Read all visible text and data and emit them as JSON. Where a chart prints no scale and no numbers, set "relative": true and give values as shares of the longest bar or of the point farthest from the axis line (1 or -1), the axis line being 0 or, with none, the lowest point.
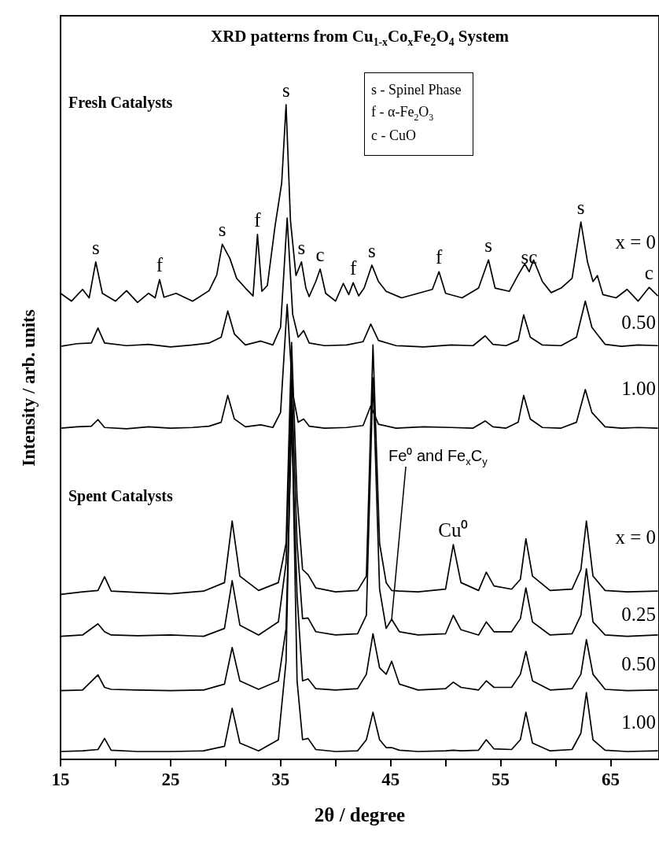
{
  "chart_data": {
    "type": "line",
    "title": "XRD patterns from Cu$_{1-x}$Co$_{x}$Fe$_{2}$O$_{4}$ System",
    "xlabel": "2θ / degree",
    "ylabel": "Intensity / arb. units",
    "relative": true,
    "xlim": [
      15,
      69.4
    ],
    "xticks": [
      15,
      {
        "value": 20,
        "label": null
      },
      25,
      {
        "value": 30,
        "label": null
      },
      35,
      {
        "value": 40,
        "label": null
      },
      45,
      {
        "value": 50,
        "label": null
      },
      55,
      {
        "value": 60,
        "label": null
      },
      65
    ],
    "series": [
      {
        "name": "x = 0",
        "color": "#000000",
        "x": [
          15,
          16,
          17,
          17.6,
          18.2,
          18.8,
          20,
          21,
          22,
          23,
          23.6,
          24,
          24.4,
          25.5,
          27,
          28.5,
          29.2,
          29.7,
          30.4,
          31,
          31.8,
          32.5,
          32.9,
          33.3,
          33.8,
          34.5,
          35.1,
          35.5,
          35.9,
          36.4,
          36.9,
          37.3,
          37.6,
          38.2,
          38.6,
          39.1,
          40,
          40.7,
          41.2,
          41.6,
          42.1,
          42.6,
          43.3,
          43.9,
          44.6,
          46,
          47.5,
          48.8,
          49.4,
          50,
          51.5,
          53,
          53.9,
          54.5,
          55.8,
          56.6,
          57.2,
          57.6,
          58,
          58.8,
          59.6,
          60.5,
          61.5,
          62.3,
          62.9,
          63.4,
          63.8,
          64.3,
          65.5,
          66.5,
          67.5,
          68.5,
          69.3
        ],
        "values": [
          0.712,
          0.7,
          0.718,
          0.705,
          0.76,
          0.712,
          0.7,
          0.716,
          0.698,
          0.712,
          0.705,
          0.733,
          0.706,
          0.712,
          0.7,
          0.716,
          0.74,
          0.787,
          0.765,
          0.735,
          0.72,
          0.708,
          0.802,
          0.715,
          0.724,
          0.815,
          0.88,
          1.0,
          0.823,
          0.739,
          0.76,
          0.72,
          0.707,
          0.73,
          0.749,
          0.712,
          0.7,
          0.727,
          0.71,
          0.728,
          0.708,
          0.72,
          0.755,
          0.73,
          0.715,
          0.705,
          0.712,
          0.718,
          0.745,
          0.712,
          0.705,
          0.72,
          0.763,
          0.72,
          0.715,
          0.74,
          0.757,
          0.745,
          0.763,
          0.73,
          0.713,
          0.72,
          0.735,
          0.821,
          0.76,
          0.73,
          0.739,
          0.71,
          0.705,
          0.718,
          0.7,
          0.721,
          0.708
        ]
      },
      {
        "name": "0.50",
        "color": "#000000",
        "x": [
          15,
          16.5,
          17.8,
          18.4,
          19,
          21,
          23,
          25,
          27,
          28.5,
          29.6,
          30.2,
          30.8,
          31.8,
          33.2,
          34.3,
          35.0,
          35.6,
          36.1,
          36.6,
          37.1,
          37.6,
          39,
          41,
          42.5,
          43.2,
          43.9,
          45.5,
          48,
          50.5,
          52.5,
          53.6,
          54.3,
          55.5,
          56.6,
          57.1,
          57.7,
          58.8,
          60.5,
          61.9,
          62.7,
          63.3,
          64.5,
          66,
          67.5,
          69.3
        ],
        "values": [
          0.631,
          0.635,
          0.636,
          0.659,
          0.636,
          0.632,
          0.634,
          0.63,
          0.633,
          0.636,
          0.645,
          0.685,
          0.65,
          0.633,
          0.639,
          0.633,
          0.66,
          0.827,
          0.68,
          0.645,
          0.655,
          0.636,
          0.632,
          0.633,
          0.638,
          0.665,
          0.64,
          0.632,
          0.63,
          0.633,
          0.632,
          0.647,
          0.634,
          0.632,
          0.64,
          0.679,
          0.645,
          0.633,
          0.632,
          0.645,
          0.7,
          0.66,
          0.634,
          0.631,
          0.633,
          0.632
        ]
      },
      {
        "name": "1.00",
        "color": "#000000",
        "x": [
          15,
          16.5,
          17.8,
          18.4,
          19,
          21,
          23,
          25,
          27,
          28.5,
          29.6,
          30.2,
          30.8,
          31.8,
          33.2,
          34.3,
          35.0,
          35.6,
          36.1,
          36.6,
          37.1,
          37.6,
          39,
          41,
          42.5,
          43.2,
          43.9,
          45.5,
          48,
          50.5,
          52.5,
          53.6,
          54.3,
          55.5,
          56.6,
          57.1,
          57.7,
          58.8,
          60.5,
          61.9,
          62.7,
          63.3,
          64.5,
          66,
          67.5,
          69.3
        ],
        "values": [
          0.506,
          0.508,
          0.509,
          0.519,
          0.507,
          0.505,
          0.508,
          0.506,
          0.507,
          0.509,
          0.515,
          0.556,
          0.52,
          0.508,
          0.511,
          0.507,
          0.53,
          0.695,
          0.56,
          0.515,
          0.52,
          0.509,
          0.506,
          0.507,
          0.51,
          0.54,
          0.512,
          0.506,
          0.508,
          0.507,
          0.506,
          0.517,
          0.508,
          0.506,
          0.515,
          0.556,
          0.52,
          0.507,
          0.506,
          0.515,
          0.565,
          0.53,
          0.508,
          0.506,
          0.507,
          0.506
        ]
      },
      {
        "name": "x = 0",
        "color": "#000000",
        "x": [
          15,
          17,
          18.4,
          19,
          19.6,
          22,
          25,
          28,
          29.9,
          30.6,
          31.3,
          33,
          34.8,
          35.5,
          36,
          36.5,
          37,
          37.5,
          38.2,
          40,
          42,
          42.8,
          43.4,
          44,
          44.6,
          45.1,
          45.8,
          47.5,
          50,
          50.7,
          51.4,
          53,
          53.7,
          54.4,
          56,
          56.8,
          57.3,
          57.9,
          59.5,
          61.5,
          62.3,
          62.8,
          63.4,
          64.5,
          66.5,
          69.3
        ],
        "values": [
          0.252,
          0.256,
          0.258,
          0.279,
          0.257,
          0.255,
          0.253,
          0.257,
          0.27,
          0.364,
          0.28,
          0.258,
          0.27,
          0.33,
          0.637,
          0.4,
          0.29,
          0.282,
          0.262,
          0.256,
          0.258,
          0.28,
          0.633,
          0.33,
          0.27,
          0.258,
          0.257,
          0.256,
          0.26,
          0.328,
          0.27,
          0.258,
          0.286,
          0.265,
          0.26,
          0.275,
          0.337,
          0.28,
          0.258,
          0.26,
          0.29,
          0.364,
          0.28,
          0.258,
          0.256,
          0.257
        ]
      },
      {
        "name": "0.25",
        "color": "#000000",
        "x": [
          15,
          17,
          18.4,
          19,
          19.6,
          22,
          25,
          28,
          29.9,
          30.6,
          31.3,
          33,
          34.8,
          35.5,
          36,
          36.5,
          37,
          37.5,
          38.2,
          40,
          42,
          42.8,
          43.4,
          44,
          44.6,
          45.1,
          45.8,
          47.5,
          50,
          50.7,
          51.4,
          53,
          53.7,
          54.4,
          56,
          56.8,
          57.3,
          57.9,
          59.5,
          61.5,
          62.3,
          62.8,
          63.4,
          64.5,
          66.5,
          69.3
        ],
        "values": [
          0.188,
          0.19,
          0.207,
          0.195,
          0.19,
          0.189,
          0.19,
          0.188,
          0.2,
          0.273,
          0.205,
          0.19,
          0.21,
          0.3,
          0.58,
          0.33,
          0.215,
          0.216,
          0.195,
          0.19,
          0.192,
          0.22,
          0.583,
          0.26,
          0.2,
          0.214,
          0.195,
          0.19,
          0.192,
          0.22,
          0.198,
          0.19,
          0.21,
          0.195,
          0.195,
          0.215,
          0.262,
          0.21,
          0.19,
          0.192,
          0.22,
          0.291,
          0.21,
          0.19,
          0.188,
          0.19
        ]
      },
      {
        "name": "0.50",
        "color": "#000000",
        "x": [
          15,
          17,
          18.4,
          19,
          19.6,
          22,
          25,
          28,
          29.9,
          30.6,
          31.3,
          33,
          34.8,
          35.5,
          36,
          36.5,
          37,
          37.5,
          38.2,
          40,
          42,
          42.8,
          43.4,
          44,
          44.6,
          45.1,
          45.8,
          47.5,
          50,
          50.7,
          51.4,
          53,
          53.7,
          54.4,
          56,
          56.8,
          57.3,
          57.9,
          59.5,
          61.5,
          62.3,
          62.8,
          63.4,
          64.5,
          66.5,
          69.3
        ],
        "values": [
          0.105,
          0.106,
          0.129,
          0.11,
          0.107,
          0.106,
          0.105,
          0.106,
          0.115,
          0.171,
          0.12,
          0.107,
          0.12,
          0.2,
          0.52,
          0.25,
          0.12,
          0.123,
          0.108,
          0.106,
          0.108,
          0.13,
          0.192,
          0.14,
          0.13,
          0.15,
          0.115,
          0.106,
          0.108,
          0.118,
          0.11,
          0.106,
          0.12,
          0.11,
          0.11,
          0.13,
          0.165,
          0.12,
          0.106,
          0.108,
          0.13,
          0.183,
          0.13,
          0.107,
          0.105,
          0.106
        ]
      },
      {
        "name": "1.00",
        "color": "#000000",
        "x": [
          15,
          17,
          18.4,
          19,
          19.6,
          22,
          25,
          28,
          29.9,
          30.6,
          31.3,
          33,
          34.8,
          35.5,
          36,
          36.5,
          37,
          37.5,
          38.2,
          40,
          42,
          42.8,
          43.4,
          44,
          44.6,
          45.1,
          45.8,
          47.5,
          50,
          50.7,
          51.4,
          53,
          53.7,
          54.4,
          56,
          56.8,
          57.3,
          57.9,
          59.5,
          61.5,
          62.3,
          62.8,
          63.4,
          64.5,
          66.5,
          69.3
        ],
        "values": [
          0.012,
          0.013,
          0.015,
          0.032,
          0.014,
          0.012,
          0.012,
          0.013,
          0.02,
          0.078,
          0.025,
          0.013,
          0.03,
          0.15,
          0.55,
          0.12,
          0.03,
          0.032,
          0.015,
          0.012,
          0.013,
          0.03,
          0.072,
          0.03,
          0.018,
          0.018,
          0.014,
          0.012,
          0.013,
          0.014,
          0.013,
          0.014,
          0.03,
          0.016,
          0.015,
          0.03,
          0.072,
          0.025,
          0.013,
          0.015,
          0.04,
          0.102,
          0.03,
          0.014,
          0.012,
          0.013
        ]
      }
    ],
    "annotations": [
      "Fresh Catalysts",
      "Spent Catalysts",
      "s - Spinel Phase",
      "f - α-Fe$_{2}$O$_{3}$",
      "c - CuO",
      {
        "text": "s",
        "x": 18.2,
        "y": 0.76
      },
      {
        "text": "f",
        "x": 24,
        "y": 0.733
      },
      {
        "text": "s",
        "x": 29.7,
        "y": 0.787
      },
      {
        "text": "f",
        "x": 32.9,
        "y": 0.802
      },
      {
        "text": "s",
        "x": 35.5,
        "y": 1.0
      },
      {
        "text": "s",
        "x": 36.9,
        "y": 0.76
      },
      {
        "text": "c",
        "x": 38.6,
        "y": 0.749
      },
      {
        "text": "f",
        "x": 41.6,
        "y": 0.728
      },
      {
        "text": "s",
        "x": 43.3,
        "y": 0.755
      },
      {
        "text": "f",
        "x": 49.4,
        "y": 0.745
      },
      {
        "text": "s",
        "x": 53.9,
        "y": 0.763
      },
      {
        "text": "sc",
        "x": 57.6,
        "y": 0.745
      },
      {
        "text": "s",
        "x": 62.3,
        "y": 0.821
      },
      {
        "text": "c",
        "x": 68.5,
        "y": 0.721
      },
      {
        "text": "Cu⁰",
        "x": 50.7,
        "y": 0.328
      },
      {
        "text": "Fe⁰ and Fe$_{x}$C$_{y}$",
        "x": 45.1,
        "y": 0.214
      }
    ]
  }
}
